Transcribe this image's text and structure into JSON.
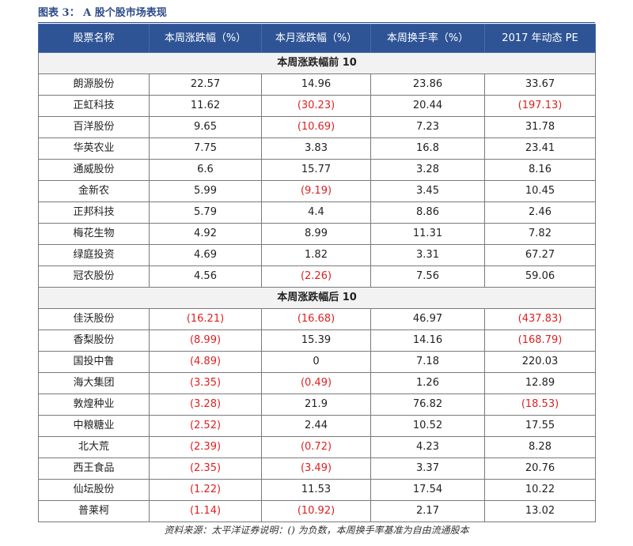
{
  "caption": "图表 3：  A 股个股市场表现",
  "headers": [
    "股票名称",
    "本周涨跌幅（%）",
    "本月涨跌幅（%）",
    "本周换手率（%）",
    "2017 年动态 PE"
  ],
  "sections": [
    {
      "title": "本周涨跌幅前 10",
      "rows": [
        [
          "朗源股份",
          "22.57",
          "14.96",
          "23.86",
          "33.67"
        ],
        [
          "正虹科技",
          "11.62",
          "(30.23)",
          "20.44",
          "(197.13)"
        ],
        [
          "百洋股份",
          "9.65",
          "(10.69)",
          "7.23",
          "31.78"
        ],
        [
          "华英农业",
          "7.75",
          "3.83",
          "16.8",
          "23.41"
        ],
        [
          "通威股份",
          "6.6",
          "15.77",
          "3.28",
          "8.16"
        ],
        [
          "金新农",
          "5.99",
          "(9.19)",
          "3.45",
          "10.45"
        ],
        [
          "正邦科技",
          "5.79",
          "4.4",
          "8.86",
          "2.46"
        ],
        [
          "梅花生物",
          "4.92",
          "8.99",
          "11.31",
          "7.82"
        ],
        [
          "绿庭投资",
          "4.69",
          "1.82",
          "3.31",
          "67.27"
        ],
        [
          "冠农股份",
          "4.56",
          "(2.26)",
          "7.56",
          "59.06"
        ]
      ]
    },
    {
      "title": "本周涨跌幅后 10",
      "rows": [
        [
          "佳沃股份",
          "(16.21)",
          "(16.68)",
          "46.97",
          "(437.83)"
        ],
        [
          "香梨股份",
          "(8.99)",
          "15.39",
          "14.16",
          "(168.79)"
        ],
        [
          "国投中鲁",
          "(4.89)",
          "0",
          "7.18",
          "220.03"
        ],
        [
          "海大集团",
          "(3.35)",
          "(0.49)",
          "1.26",
          "12.89"
        ],
        [
          "敦煌种业",
          "(3.28)",
          "21.9",
          "76.82",
          "(18.53)"
        ],
        [
          "中粮糖业",
          "(2.52)",
          "2.44",
          "10.52",
          "17.55"
        ],
        [
          "北大荒",
          "(2.39)",
          "(0.72)",
          "4.23",
          "8.28"
        ],
        [
          "西王食品",
          "(2.35)",
          "(3.49)",
          "3.37",
          "20.76"
        ],
        [
          "仙坛股份",
          "(1.22)",
          "11.53",
          "17.54",
          "10.22"
        ],
        [
          "普莱柯",
          "(1.14)",
          "(10.92)",
          "2.17",
          "13.02"
        ]
      ]
    }
  ],
  "source": "资料来源：太平洋证券说明：() 为负数，本周换手率基准为自由流通股本",
  "colors": {
    "header_bg": "#2e5496",
    "negative": "#e02020",
    "caption": "#2d4a8a"
  }
}
